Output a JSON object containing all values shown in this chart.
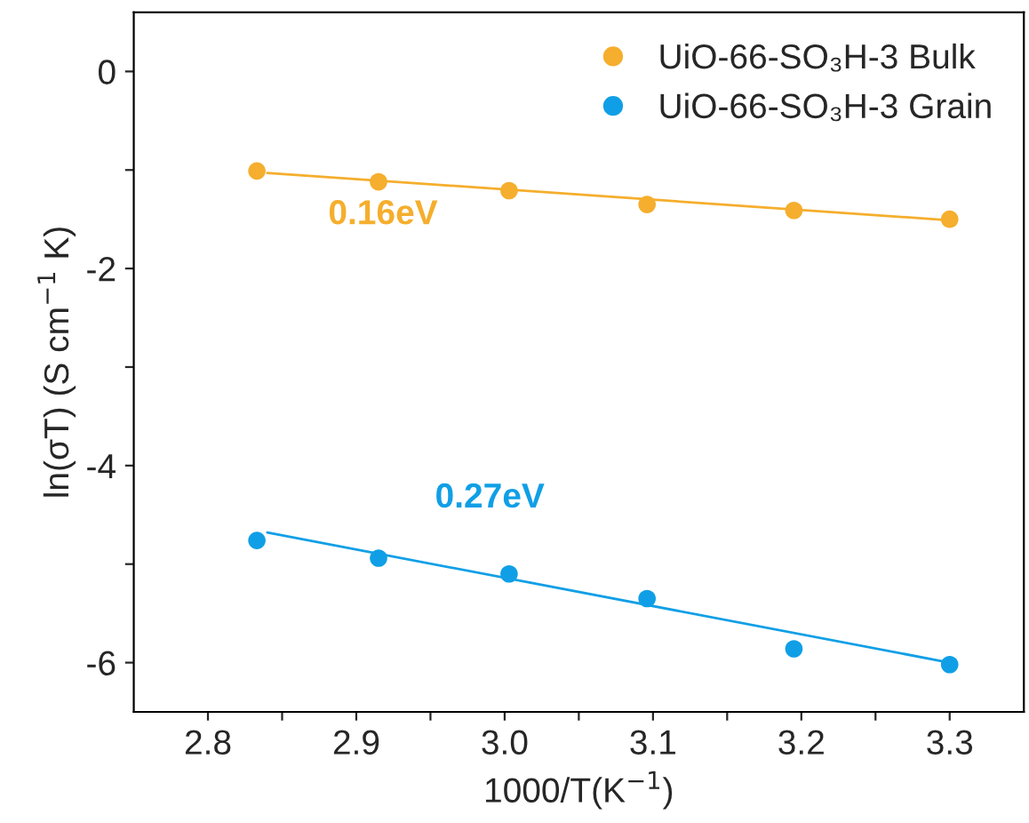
{
  "chart_data": {
    "type": "scatter",
    "xlabel": "1000/T(K$^{−1}$)",
    "ylabel": "ln(σT) (S cm$^{−1}$ K)",
    "series": [
      {
        "name": "UiO-66-SO₃H-3 Bulk",
        "color": "#f5ae2d",
        "x": [
          2.833,
          2.915,
          3.003,
          3.096,
          3.195,
          3.3
        ],
        "values": [
          -1.01,
          -1.12,
          -1.21,
          -1.35,
          -1.41,
          -1.5
        ],
        "marker": "circle"
      },
      {
        "name": "UiO-66-SO₃H-3 Grain",
        "color": "#109fe6",
        "x": [
          2.833,
          2.915,
          3.003,
          3.096,
          3.195,
          3.3
        ],
        "values": [
          -4.76,
          -4.94,
          -5.1,
          -5.35,
          -5.86,
          -6.02
        ],
        "marker": "circle"
      },
      {
        "type": "line",
        "color": "#f5ae2d",
        "x": [
          2.84,
          3.3
        ],
        "values": [
          -1.03,
          -1.51
        ],
        "marker": "none"
      },
      {
        "type": "line",
        "color": "#109fe6",
        "x": [
          2.84,
          3.3
        ],
        "values": [
          -4.68,
          -6.0
        ],
        "marker": "none"
      }
    ],
    "annotations": [
      "0.16eV",
      "0.27eV"
    ],
    "xlim": [
      2.75,
      3.35
    ],
    "ylim": [
      -6.5,
      0.6
    ],
    "xticks": [
      {
        "value": 2.8,
        "label": "2.8"
      },
      {
        "value": 2.85,
        "label": null
      },
      {
        "value": 2.9,
        "label": "2.9"
      },
      {
        "value": 2.95,
        "label": null
      },
      {
        "value": 3.0,
        "label": "3.0"
      },
      {
        "value": 3.05,
        "label": null
      },
      {
        "value": 3.1,
        "label": "3.1"
      },
      {
        "value": 3.15,
        "label": null
      },
      {
        "value": 3.2,
        "label": "3.2"
      },
      {
        "value": 3.25,
        "label": null
      },
      {
        "value": 3.3,
        "label": "3.3"
      }
    ],
    "yticks": [
      0,
      {
        "value": -1,
        "label": null
      },
      -2,
      {
        "value": -3,
        "label": null
      },
      -4,
      {
        "value": -5,
        "label": null
      },
      -6
    ],
    "grid": false,
    "legend": "top right"
  }
}
